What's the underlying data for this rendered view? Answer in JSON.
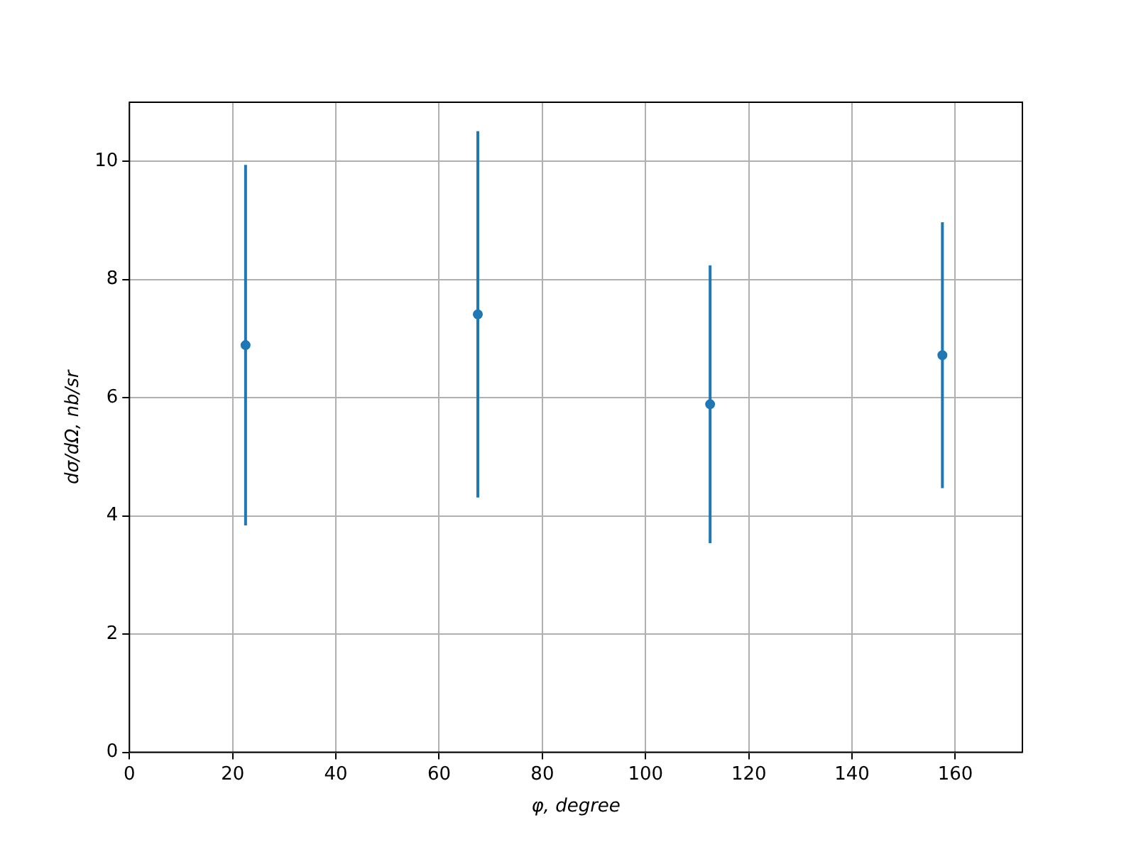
{
  "chart_data": {
    "type": "scatter",
    "xlabel": "φ, degree",
    "ylabel": "dσ/dΩ, nb/sr",
    "x": [
      22.5,
      67.5,
      112.5,
      157.5
    ],
    "values": [
      6.89,
      7.41,
      5.89,
      6.72
    ],
    "errors": [
      3.05,
      3.1,
      2.35,
      2.25
    ],
    "color": "#1f77b4",
    "marker": "circle",
    "xlim": [
      0,
      173
    ],
    "xticks": [
      0,
      20,
      40,
      60,
      80,
      100,
      120,
      140,
      160
    ],
    "ylim": [
      0,
      11
    ],
    "yticks": [
      0,
      2,
      4,
      6,
      8,
      10
    ],
    "grid": true
  }
}
